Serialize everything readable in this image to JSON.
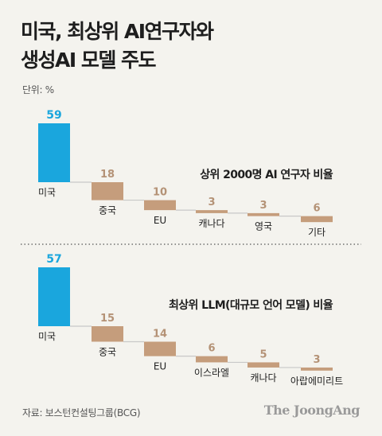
{
  "title_line1": "미국, 최상위 AI연구자와",
  "title_line2": "생성AI 모델 주도",
  "unit_label": "단위: %",
  "source": "자료: 보스턴컨설팅그룹(BCG)",
  "brand": "The JoongAng",
  "colors": {
    "highlight": "#1aa6dd",
    "bar": "#c59d7c",
    "baseline": "#c8c8c8",
    "divider": "#555555",
    "value_text": "#b49276"
  },
  "chart_data": [
    {
      "type": "bar",
      "title": "상위 2000명 AI 연구자 비율",
      "categories": [
        "미국",
        "중국",
        "EU",
        "캐나다",
        "영국",
        "기타"
      ],
      "values": [
        59,
        18,
        10,
        3,
        3,
        6
      ]
    },
    {
      "type": "bar",
      "title": "최상위 LLM(대규모 언어 모델) 비율",
      "categories": [
        "미국",
        "중국",
        "EU",
        "이스라엘",
        "캐나다",
        "아랍에미리트"
      ],
      "values": [
        57,
        15,
        14,
        6,
        5,
        3
      ]
    }
  ]
}
